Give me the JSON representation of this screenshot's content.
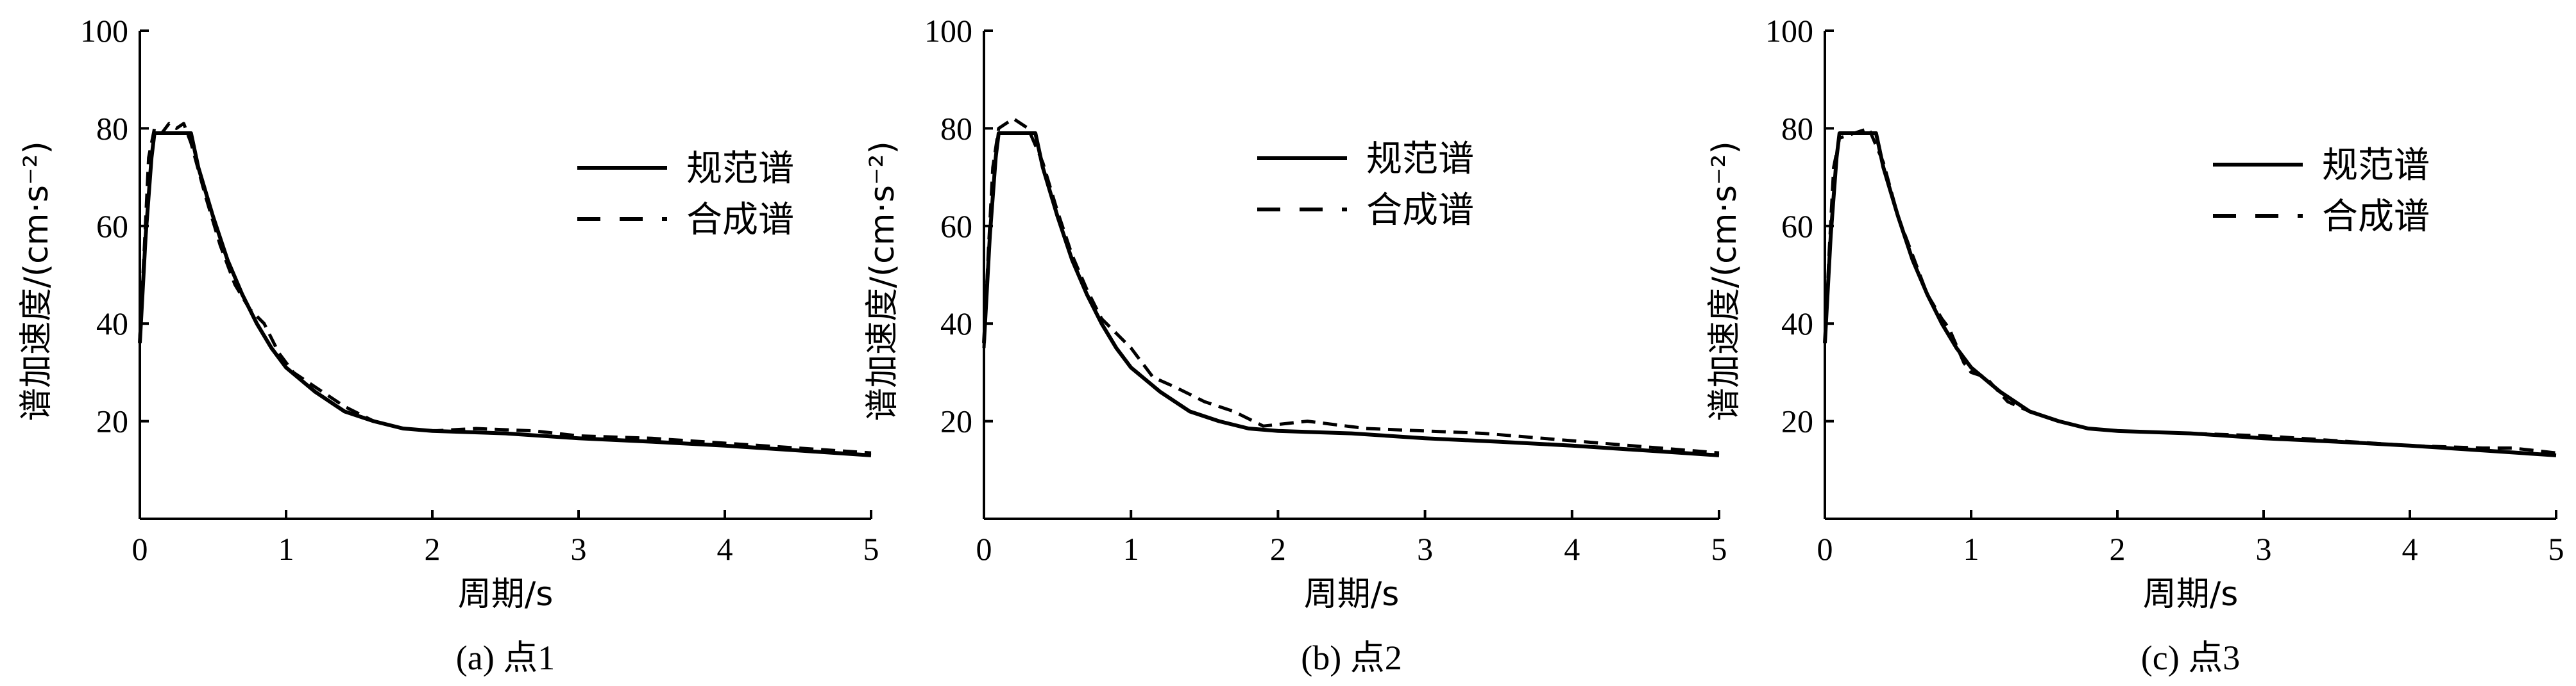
{
  "chart_data": [
    {
      "type": "line",
      "caption": "(a) 点1",
      "xlabel": "周期/s",
      "ylabel": "谱加速度/(cm·s⁻²)",
      "xlim": [
        0,
        5
      ],
      "ylim": [
        0,
        100
      ],
      "xticks": [
        "0",
        "1",
        "2",
        "3",
        "4",
        "5"
      ],
      "yticks": [
        "20",
        "40",
        "60",
        "80",
        "100"
      ],
      "legend_position": "upper-right",
      "series": [
        {
          "name": "规范谱",
          "style": "solid",
          "x": [
            0,
            0.04,
            0.08,
            0.1,
            0.2,
            0.35,
            0.4,
            0.5,
            0.6,
            0.7,
            0.8,
            0.9,
            1.0,
            1.2,
            1.4,
            1.6,
            1.8,
            2.0,
            2.5,
            3.0,
            3.5,
            4.0,
            4.5,
            5.0
          ],
          "y": [
            36,
            58,
            74,
            79,
            79,
            79,
            72,
            62,
            53,
            46,
            40,
            35,
            31,
            26,
            22,
            20,
            18.5,
            18,
            17.5,
            16.5,
            15.8,
            15,
            14,
            13
          ]
        },
        {
          "name": "合成谱",
          "style": "dashed",
          "x": [
            0,
            0.03,
            0.06,
            0.1,
            0.15,
            0.2,
            0.25,
            0.3,
            0.35,
            0.45,
            0.55,
            0.65,
            0.75,
            0.85,
            0.95,
            1.05,
            1.2,
            1.4,
            1.6,
            1.8,
            2.0,
            2.3,
            2.7,
            3.0,
            3.5,
            4.0,
            4.5,
            5.0
          ],
          "y": [
            37,
            55,
            74,
            80,
            79,
            81,
            80,
            81,
            77,
            66,
            56,
            48,
            43,
            40,
            34,
            30,
            27,
            23,
            20,
            18.5,
            18,
            18.5,
            18,
            17,
            16.5,
            15.5,
            14.5,
            13.5
          ]
        }
      ]
    },
    {
      "type": "line",
      "caption": "(b) 点2",
      "xlabel": "周期/s",
      "ylabel": "谱加速度/(cm·s⁻²)",
      "xlim": [
        0,
        5
      ],
      "ylim": [
        0,
        100
      ],
      "xticks": [
        "0",
        "1",
        "2",
        "3",
        "4",
        "5"
      ],
      "yticks": [
        "20",
        "40",
        "60",
        "80",
        "100"
      ],
      "legend_position": "upper-right",
      "series": [
        {
          "name": "规范谱",
          "style": "solid",
          "x": [
            0,
            0.04,
            0.08,
            0.1,
            0.2,
            0.35,
            0.4,
            0.5,
            0.6,
            0.7,
            0.8,
            0.9,
            1.0,
            1.2,
            1.4,
            1.6,
            1.8,
            2.0,
            2.5,
            3.0,
            3.5,
            4.0,
            4.5,
            5.0
          ],
          "y": [
            36,
            58,
            74,
            79,
            79,
            79,
            72,
            62,
            53,
            46,
            40,
            35,
            31,
            26,
            22,
            20,
            18.5,
            18,
            17.5,
            16.5,
            15.8,
            15,
            14,
            13
          ]
        },
        {
          "name": "合成谱",
          "style": "dashed",
          "x": [
            0,
            0.03,
            0.06,
            0.1,
            0.2,
            0.3,
            0.4,
            0.5,
            0.6,
            0.7,
            0.8,
            0.9,
            1.0,
            1.15,
            1.3,
            1.5,
            1.7,
            1.9,
            2.2,
            2.6,
            3.0,
            3.4,
            3.8,
            4.2,
            4.6,
            5.0
          ],
          "y": [
            35,
            55,
            72,
            80,
            82,
            80,
            73,
            63,
            54,
            47,
            41,
            38,
            35,
            29,
            27,
            24,
            22,
            19,
            20,
            18.5,
            18,
            17.5,
            16.5,
            15.5,
            14.5,
            13.5
          ]
        }
      ]
    },
    {
      "type": "line",
      "caption": "(c) 点3",
      "xlabel": "周期/s",
      "ylabel": "谱加速度/(cm·s⁻²)",
      "xlim": [
        0,
        5
      ],
      "ylim": [
        0,
        100
      ],
      "xticks": [
        "0",
        "1",
        "2",
        "3",
        "4",
        "5"
      ],
      "yticks": [
        "20",
        "40",
        "60",
        "80",
        "100"
      ],
      "legend_position": "upper-right",
      "series": [
        {
          "name": "规范谱",
          "style": "solid",
          "x": [
            0,
            0.04,
            0.08,
            0.1,
            0.2,
            0.35,
            0.4,
            0.5,
            0.6,
            0.7,
            0.8,
            0.9,
            1.0,
            1.2,
            1.4,
            1.6,
            1.8,
            2.0,
            2.5,
            3.0,
            3.5,
            4.0,
            4.5,
            5.0
          ],
          "y": [
            36,
            58,
            74,
            79,
            79,
            79,
            72,
            62,
            53,
            46,
            40,
            35,
            31,
            26,
            22,
            20,
            18.5,
            18,
            17.5,
            16.5,
            15.8,
            15,
            14,
            13
          ]
        },
        {
          "name": "合成谱",
          "style": "dashed",
          "x": [
            0,
            0.03,
            0.06,
            0.1,
            0.2,
            0.3,
            0.4,
            0.5,
            0.6,
            0.7,
            0.8,
            0.85,
            0.95,
            1.0,
            1.1,
            1.25,
            1.4,
            1.6,
            1.8,
            2.0,
            2.5,
            3.0,
            3.5,
            4.0,
            4.5,
            4.7,
            5.0
          ],
          "y": [
            36,
            55,
            72,
            78,
            79,
            80,
            73,
            62,
            54,
            46,
            41,
            39,
            32,
            30,
            29,
            24,
            22,
            20,
            18.5,
            18,
            17.5,
            17,
            16,
            15,
            14.5,
            14.5,
            13.5
          ]
        }
      ]
    }
  ]
}
